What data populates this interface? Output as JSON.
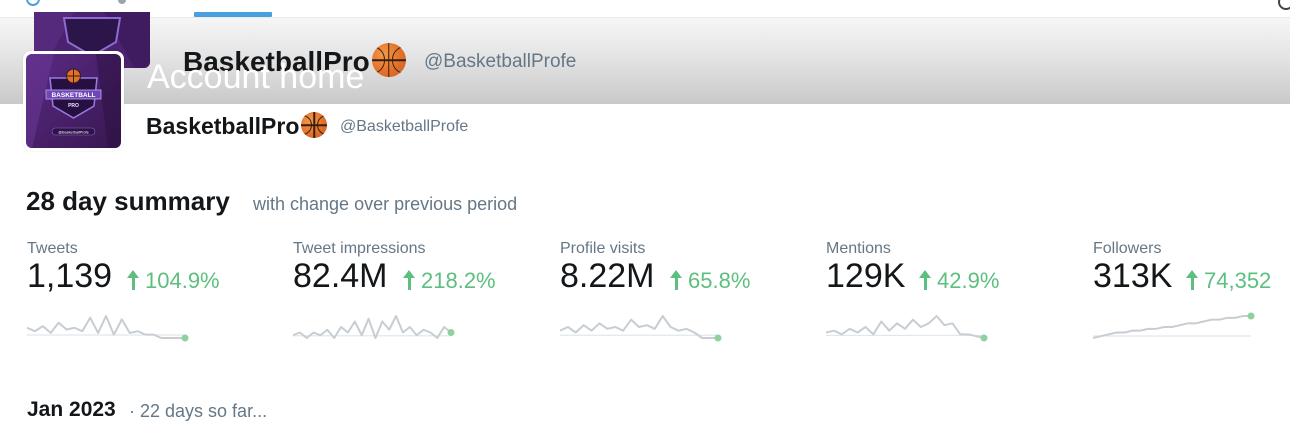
{
  "header": {
    "title": "Account home",
    "display_name": "BasketballPro",
    "handle": "@BasketballProfe"
  },
  "profile": {
    "display_name": "BasketballPro",
    "handle": "@BasketballProfe",
    "avatar_text": "BASKETBALL",
    "avatar_subtext": "PRO",
    "avatar_handle": "@BasketballProfe"
  },
  "summary": {
    "title": "28 day summary",
    "subtitle": "with change over previous period",
    "stats": [
      {
        "label": "Tweets",
        "value": "1,139",
        "change": "104.9%",
        "trend": [
          6,
          4,
          7,
          3,
          9,
          5,
          6,
          4,
          12,
          3,
          13,
          2,
          11,
          3,
          4,
          2,
          2,
          0,
          0,
          0,
          0
        ]
      },
      {
        "label": "Tweet impressions",
        "value": "82.4M",
        "change": "218.2%",
        "trend": [
          3,
          4,
          2,
          4,
          3,
          5,
          2,
          6,
          4,
          8,
          3,
          9,
          2,
          8,
          5,
          10,
          4,
          6,
          3,
          5,
          4,
          2,
          6,
          4
        ]
      },
      {
        "label": "Profile visits",
        "value": "8.22M",
        "change": "65.8%",
        "trend": [
          4,
          6,
          3,
          7,
          4,
          8,
          5,
          6,
          4,
          10,
          6,
          7,
          5,
          12,
          6,
          4,
          5,
          3,
          0,
          0,
          0
        ]
      },
      {
        "label": "Mentions",
        "value": "129K",
        "change": "42.9%",
        "trend": [
          3,
          4,
          2,
          5,
          3,
          6,
          2,
          9,
          4,
          8,
          5,
          10,
          6,
          8,
          12,
          7,
          8,
          2,
          2,
          1,
          0
        ]
      },
      {
        "label": "Followers",
        "value": "313K",
        "change": "74,352",
        "trend": [
          0,
          1,
          2,
          3,
          3,
          4,
          4,
          5,
          5,
          6,
          6,
          7,
          8,
          8,
          9,
          10,
          10,
          11,
          11,
          12,
          12
        ]
      }
    ]
  },
  "month": {
    "title": "Jan 2023",
    "subtitle": "· 22 days so far..."
  },
  "colors": {
    "accent": "#4a9fe0",
    "positive": "#5cbf7f",
    "sparkline": "#c8cdd2",
    "muted": "#657786"
  },
  "icons": [
    "basketball-emoji-icon",
    "arrow-up-icon",
    "avatar-logo"
  ]
}
